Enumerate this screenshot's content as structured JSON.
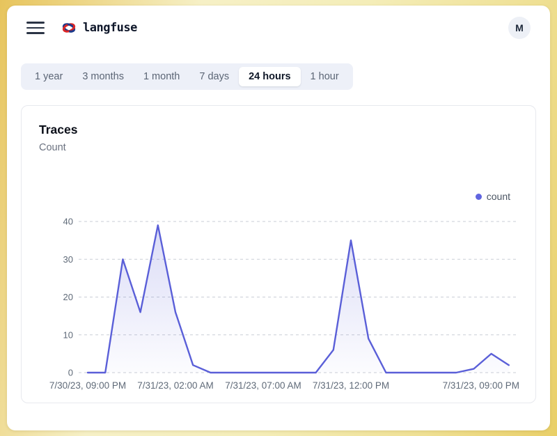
{
  "header": {
    "brand": "langfuse",
    "avatar_label": "M"
  },
  "tabs": {
    "items": [
      {
        "label": "1 year",
        "selected": false
      },
      {
        "label": "3 months",
        "selected": false
      },
      {
        "label": "1 month",
        "selected": false
      },
      {
        "label": "7 days",
        "selected": false
      },
      {
        "label": "24 hours",
        "selected": true
      },
      {
        "label": "1 hour",
        "selected": false
      }
    ]
  },
  "card": {
    "title": "Traces",
    "subtitle": "Count"
  },
  "chart_data": {
    "type": "area",
    "title": "Traces",
    "ylabel": "Count",
    "x_unit": "hour",
    "x_range_start": "7/30/23, 09:00 PM",
    "x_range_end": "7/31/23, 09:00 PM",
    "series": [
      {
        "name": "count",
        "color": "#5a5fd8",
        "values": [
          0,
          0,
          30,
          16,
          39,
          16,
          2,
          0,
          0,
          0,
          0,
          0,
          0,
          0,
          6,
          35,
          9,
          0,
          0,
          0,
          0,
          0,
          1,
          5,
          2
        ]
      }
    ],
    "x_ticks": [
      {
        "index": 0,
        "label": "7/30/23, 09:00 PM",
        "align": "center"
      },
      {
        "index": 5,
        "label": "7/31/23, 02:00 AM",
        "align": "center"
      },
      {
        "index": 10,
        "label": "7/31/23, 07:00 AM",
        "align": "center"
      },
      {
        "index": 15,
        "label": "7/31/23, 12:00 PM",
        "align": "center"
      },
      {
        "index": 24,
        "label": "7/31/23, 09:00 PM",
        "align": "right"
      }
    ],
    "y_ticks": [
      0,
      10,
      20,
      30,
      40
    ],
    "ylim": [
      0,
      40
    ],
    "grid": "horizontal-dashed",
    "legend": {
      "label": "count",
      "dot_color": "#6065e0",
      "position": "top-right"
    }
  }
}
